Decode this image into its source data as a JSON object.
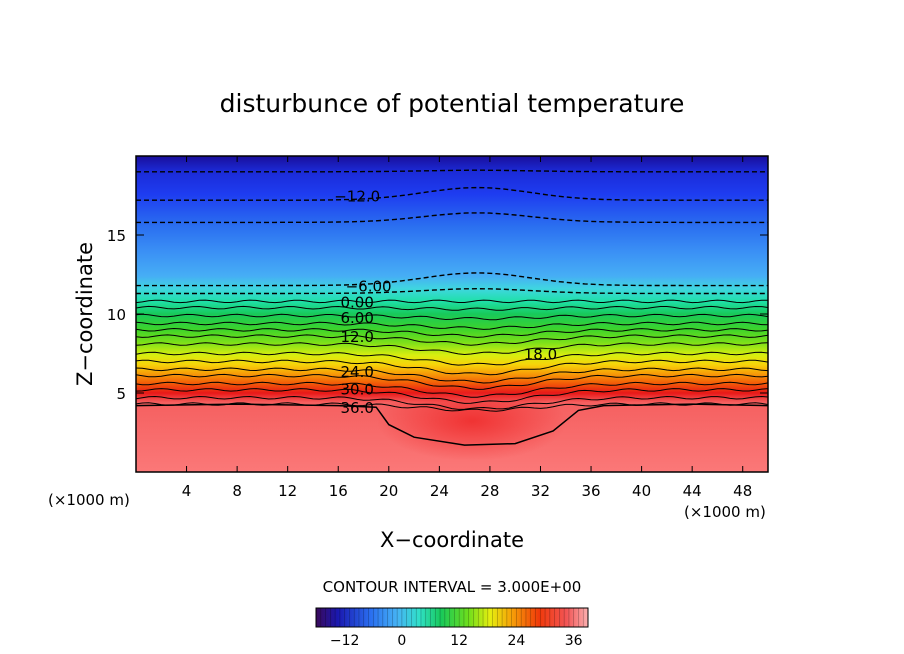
{
  "chart_data": {
    "type": "contour",
    "title": "disturbunce of potential temperature",
    "xlabel": "X−coordinate",
    "ylabel": "Z−coordinate",
    "x_unit_left": "(×1000 m)",
    "x_unit_right": "(×1000 m)",
    "xlim": [
      0,
      50
    ],
    "ylim": [
      0,
      20
    ],
    "xticks": [
      4,
      8,
      12,
      16,
      20,
      24,
      28,
      32,
      36,
      40,
      44,
      48
    ],
    "yticks": [
      5,
      10,
      15
    ],
    "contour_interval_text": "CONTOUR INTERVAL = 3.000E+00",
    "contour_labels": [
      {
        "text": "−12.0",
        "x": 17.5,
        "z": 17.5
      },
      {
        "text": "−6.00",
        "x": 18.4,
        "z": 11.8
      },
      {
        "text": "0.00",
        "x": 17.5,
        "z": 10.8
      },
      {
        "text": "6.00",
        "x": 17.5,
        "z": 9.8
      },
      {
        "text": "12.0",
        "x": 17.5,
        "z": 8.6
      },
      {
        "text": "18.0",
        "x": 32.0,
        "z": 7.5
      },
      {
        "text": "24.0",
        "x": 17.5,
        "z": 6.4
      },
      {
        "text": "30.0",
        "x": 17.5,
        "z": 5.3
      },
      {
        "text": "36.0",
        "x": 17.5,
        "z": 4.1
      }
    ],
    "colorbar": {
      "min": -18,
      "max": 39,
      "tick_values": [
        -12,
        0,
        12,
        24,
        36
      ],
      "tick_labels": [
        "−12",
        "0",
        "12",
        "24",
        "36"
      ]
    }
  }
}
